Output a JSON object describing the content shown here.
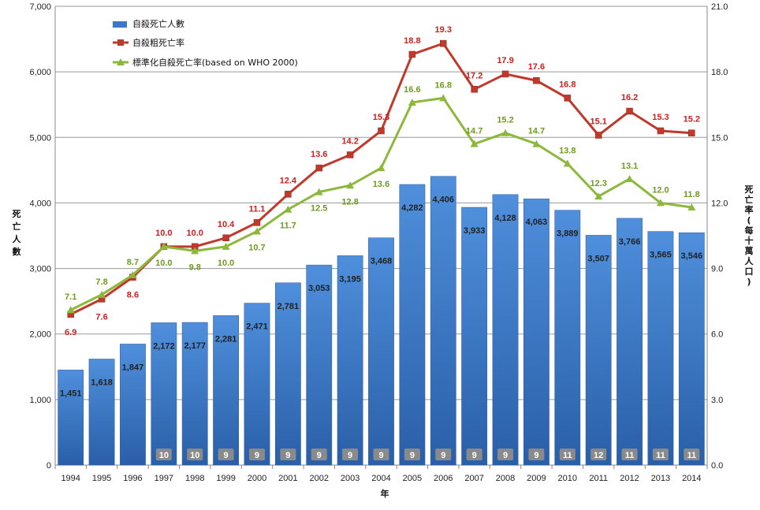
{
  "chart_data": {
    "type": "bar",
    "categories": [
      "1994",
      "1995",
      "1996",
      "1997",
      "1998",
      "1999",
      "2000",
      "2001",
      "2002",
      "2003",
      "2004",
      "2005",
      "2006",
      "2007",
      "2008",
      "2009",
      "2010",
      "2011",
      "2012",
      "2013",
      "2014"
    ],
    "series": [
      {
        "name": "自殺死亡人數",
        "type": "bar",
        "axis": "left",
        "color": "#3a78c8",
        "values": [
          1451,
          1618,
          1847,
          2172,
          2177,
          2281,
          2471,
          2781,
          3053,
          3195,
          3468,
          4282,
          4406,
          3933,
          4128,
          4063,
          3889,
          3507,
          3766,
          3565,
          3546
        ],
        "labels": [
          "1,451",
          "1,618",
          "1,847",
          "2,172",
          "2,177",
          "2,281",
          "2,471",
          "2,781",
          "3,053",
          "3,195",
          "3,468",
          "4,282",
          "4,406",
          "3,933",
          "4,128",
          "4,063",
          "3,889",
          "3,507",
          "3,766",
          "3,565",
          "3,546"
        ]
      },
      {
        "name": "自殺粗死亡率",
        "type": "line",
        "axis": "right",
        "color": "#c0392b",
        "values": [
          6.9,
          7.6,
          8.6,
          10.0,
          10.0,
          10.4,
          11.1,
          12.4,
          13.6,
          14.2,
          15.3,
          18.8,
          19.3,
          17.2,
          17.9,
          17.6,
          16.8,
          15.1,
          16.2,
          15.3,
          15.2
        ],
        "labels": [
          "6.9",
          "7.6",
          "8.6",
          "10.0",
          "10.0",
          "10.4",
          "11.1",
          "12.4",
          "13.6",
          "14.2",
          "15.3",
          "18.8",
          "19.3",
          "17.2",
          "17.9",
          "17.6",
          "16.8",
          "15.1",
          "16.2",
          "15.3",
          "15.2"
        ]
      },
      {
        "name": "標準化自殺死亡率(based on WHO 2000)",
        "type": "line",
        "axis": "right",
        "color": "#8cb83c",
        "values": [
          7.1,
          7.8,
          8.7,
          10.0,
          9.8,
          10.0,
          10.7,
          11.7,
          12.5,
          12.8,
          13.6,
          16.6,
          16.8,
          14.7,
          15.2,
          14.7,
          13.8,
          12.3,
          13.1,
          12.0,
          11.8
        ],
        "labels": [
          "7.1",
          "7.8",
          "8.7",
          "10.0",
          "9.8",
          "10.0",
          "10.7",
          "11.7",
          "12.5",
          "12.8",
          "13.6",
          "16.6",
          "16.8",
          "14.7",
          "15.2",
          "14.7",
          "13.8",
          "12.3",
          "13.1",
          "12.0",
          "11.8"
        ]
      }
    ],
    "rank_badges": [
      "",
      "",
      "",
      "10",
      "10",
      "9",
      "9",
      "9",
      "9",
      "9",
      "9",
      "9",
      "9",
      "9",
      "9",
      "9",
      "11",
      "12",
      "11",
      "11",
      "11"
    ],
    "ylabel": "死亡人數",
    "y2label": "死亡率(每十萬人口)",
    "xlabel": "年",
    "ylim": [
      0,
      7000
    ],
    "y2lim": [
      0,
      21
    ],
    "yticks": [
      "0",
      "1,000",
      "2,000",
      "3,000",
      "4,000",
      "5,000",
      "6,000",
      "7,000"
    ],
    "y2ticks": [
      "0.0",
      "3.0",
      "6.0",
      "9.0",
      "12.0",
      "15.0",
      "18.0",
      "21.0"
    ],
    "grid": true,
    "legend_position": "top-left"
  }
}
